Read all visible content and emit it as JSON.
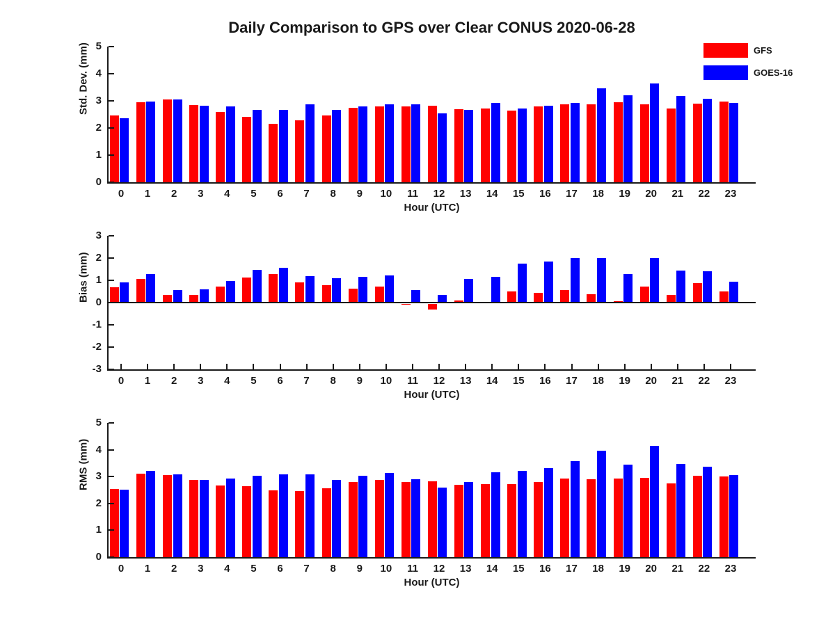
{
  "title": "Daily Comparison to GPS over Clear CONUS 2020-06-28",
  "legend": {
    "items": [
      {
        "label": "GFS",
        "color": "#ff0000"
      },
      {
        "label": "GOES-16",
        "color": "#0000ff"
      }
    ],
    "position": "top-right"
  },
  "colors": {
    "gfs": "#ff0000",
    "goes16": "#0000ff",
    "axis": "#1a1a1a",
    "text": "#1a1a1a",
    "background": "#ffffff"
  },
  "chart_data": [
    {
      "type": "bar",
      "panel": "std-dev",
      "ylabel": "Std. Dev. (mm)",
      "xlabel": "Hour (UTC)",
      "ylim": [
        0,
        5
      ],
      "yticks": [
        0,
        1,
        2,
        3,
        4,
        5
      ],
      "grid": false,
      "categories": [
        "0",
        "1",
        "2",
        "3",
        "4",
        "5",
        "6",
        "7",
        "8",
        "9",
        "10",
        "11",
        "12",
        "13",
        "14",
        "15",
        "16",
        "17",
        "18",
        "19",
        "20",
        "21",
        "22",
        "23"
      ],
      "series": [
        {
          "name": "GFS",
          "color": "#ff0000",
          "values": [
            2.45,
            2.95,
            3.05,
            2.85,
            2.6,
            2.4,
            2.15,
            2.28,
            2.47,
            2.75,
            2.8,
            2.8,
            2.82,
            2.7,
            2.72,
            2.65,
            2.8,
            2.87,
            2.88,
            2.95,
            2.88,
            2.72,
            2.9,
            2.97
          ]
        },
        {
          "name": "GOES-16",
          "color": "#0000ff",
          "values": [
            2.35,
            2.97,
            3.05,
            2.83,
            2.8,
            2.68,
            2.67,
            2.88,
            2.67,
            2.8,
            2.88,
            2.87,
            2.55,
            2.68,
            2.93,
            2.73,
            2.82,
            2.93,
            3.45,
            3.2,
            3.63,
            3.18,
            3.08,
            2.92
          ]
        }
      ]
    },
    {
      "type": "bar",
      "panel": "bias",
      "ylabel": "Bias (mm)",
      "xlabel": "Hour (UTC)",
      "ylim": [
        -3,
        3
      ],
      "yticks": [
        -3,
        -2,
        -1,
        0,
        1,
        2,
        3
      ],
      "grid": false,
      "categories": [
        "0",
        "1",
        "2",
        "3",
        "4",
        "5",
        "6",
        "7",
        "8",
        "9",
        "10",
        "11",
        "12",
        "13",
        "14",
        "15",
        "16",
        "17",
        "18",
        "19",
        "20",
        "21",
        "22",
        "23"
      ],
      "series": [
        {
          "name": "GFS",
          "color": "#ff0000",
          "values": [
            0.7,
            1.05,
            0.33,
            0.33,
            0.73,
            1.12,
            1.28,
            0.92,
            0.78,
            0.63,
            0.73,
            -0.1,
            -0.32,
            0.1,
            0.02,
            0.5,
            0.45,
            0.57,
            0.37,
            0.07,
            0.72,
            0.35,
            0.87,
            0.5
          ]
        },
        {
          "name": "GOES-16",
          "color": "#0000ff",
          "values": [
            0.9,
            1.27,
            0.57,
            0.6,
            0.98,
            1.47,
            1.55,
            1.2,
            1.1,
            1.15,
            1.23,
            0.55,
            0.33,
            1.05,
            1.15,
            1.75,
            1.83,
            2.0,
            2.0,
            1.27,
            2.0,
            1.43,
            1.4,
            0.95
          ]
        }
      ]
    },
    {
      "type": "bar",
      "panel": "rms",
      "ylabel": "RMS (mm)",
      "xlabel": "Hour (UTC)",
      "ylim": [
        0,
        5
      ],
      "yticks": [
        0,
        1,
        2,
        3,
        4,
        5
      ],
      "grid": false,
      "categories": [
        "0",
        "1",
        "2",
        "3",
        "4",
        "5",
        "6",
        "7",
        "8",
        "9",
        "10",
        "11",
        "12",
        "13",
        "14",
        "15",
        "16",
        "17",
        "18",
        "19",
        "20",
        "21",
        "22",
        "23"
      ],
      "series": [
        {
          "name": "GFS",
          "color": "#ff0000",
          "values": [
            2.55,
            3.1,
            3.05,
            2.87,
            2.67,
            2.64,
            2.5,
            2.47,
            2.57,
            2.8,
            2.87,
            2.8,
            2.83,
            2.7,
            2.72,
            2.72,
            2.8,
            2.92,
            2.9,
            2.93,
            2.95,
            2.75,
            3.02,
            3.0
          ]
        },
        {
          "name": "GOES-16",
          "color": "#0000ff",
          "values": [
            2.52,
            3.22,
            3.08,
            2.88,
            2.93,
            3.03,
            3.08,
            3.08,
            2.87,
            3.03,
            3.13,
            2.9,
            2.58,
            2.8,
            3.15,
            3.22,
            3.33,
            3.57,
            3.97,
            3.45,
            4.15,
            3.48,
            3.38,
            3.05
          ]
        }
      ]
    }
  ]
}
